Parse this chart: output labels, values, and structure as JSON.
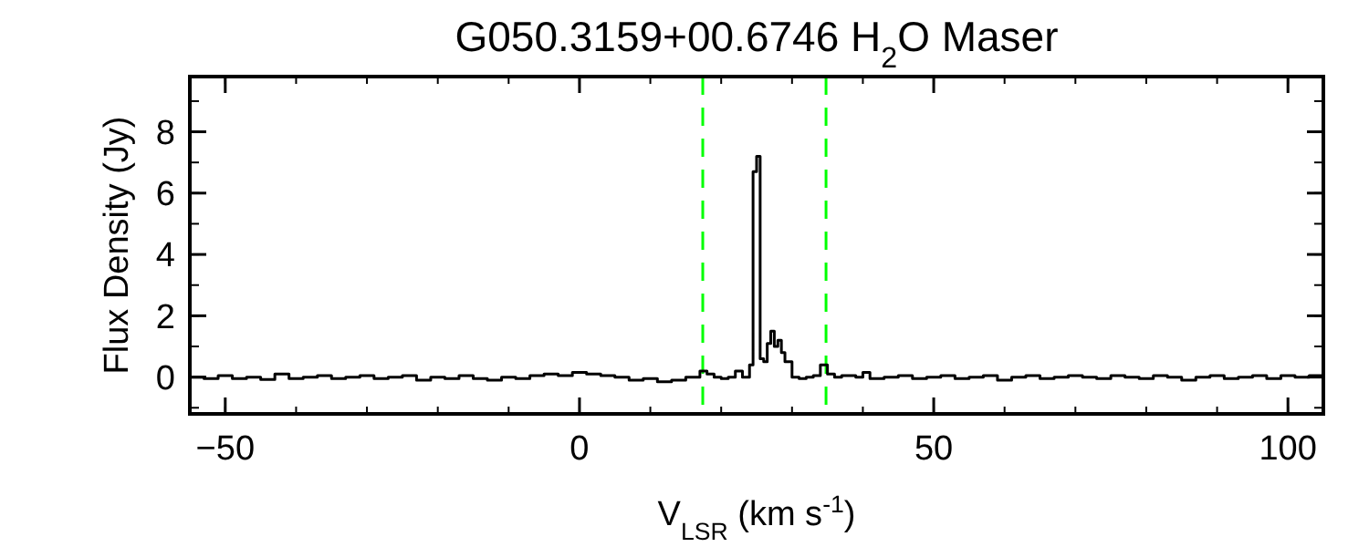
{
  "chart_data": {
    "type": "step",
    "title": "G050.3159+00.6746 H$_{2}$O Maser",
    "xlabel": "V$_{LSR}$ (km s$^{-1}$)",
    "ylabel": "Flux Density (Jy)",
    "xlim": [
      -55,
      105
    ],
    "xticks": [
      -50,
      0,
      50,
      100
    ],
    "ylim": [
      -1.2,
      9.8
    ],
    "yticks": [
      0,
      2,
      4,
      6,
      8
    ],
    "grid": false,
    "series": [
      {
        "color": "#000000",
        "x": [
          -55,
          -53,
          -51,
          -49,
          -47,
          -45,
          -43,
          -41,
          -39,
          -37,
          -35,
          -33,
          -31,
          -29,
          -27,
          -25,
          -23,
          -21,
          -19,
          -17,
          -15,
          -13,
          -11,
          -9,
          -7,
          -5,
          -3,
          -1,
          1,
          3,
          5,
          7,
          9,
          11,
          13,
          15,
          17,
          18,
          19,
          20,
          21,
          22,
          23,
          24,
          24.5,
          25,
          25.5,
          26,
          26.5,
          27,
          27.5,
          28,
          28.5,
          29,
          30,
          31,
          32,
          33,
          34,
          35,
          36,
          37,
          39,
          40,
          41,
          43,
          45,
          47,
          49,
          51,
          53,
          55,
          57,
          59,
          61,
          63,
          65,
          67,
          69,
          71,
          73,
          75,
          77,
          79,
          81,
          83,
          85,
          87,
          89,
          91,
          93,
          95,
          97,
          99,
          101,
          103,
          105
        ],
        "values": [
          0.0,
          -0.05,
          0.05,
          -0.05,
          0.0,
          -0.08,
          0.1,
          -0.05,
          0.0,
          0.05,
          -0.05,
          0.0,
          0.05,
          -0.05,
          0.0,
          0.05,
          -0.1,
          0.0,
          -0.05,
          0.05,
          -0.05,
          -0.1,
          0.0,
          -0.05,
          0.05,
          0.1,
          0.05,
          0.15,
          0.1,
          0.05,
          0.0,
          -0.1,
          -0.05,
          -0.15,
          -0.1,
          0.0,
          0.2,
          0.1,
          0.0,
          -0.05,
          0.0,
          0.2,
          0.0,
          0.4,
          6.7,
          7.2,
          0.6,
          0.5,
          1.1,
          1.5,
          1.0,
          1.2,
          0.8,
          0.5,
          0.0,
          -0.05,
          0.0,
          0.05,
          0.4,
          0.1,
          0.0,
          0.05,
          0.0,
          0.15,
          -0.05,
          0.0,
          0.05,
          -0.05,
          0.0,
          0.05,
          -0.05,
          0.0,
          0.05,
          -0.1,
          0.0,
          0.05,
          -0.05,
          0.0,
          0.05,
          0.0,
          -0.05,
          0.05,
          0.0,
          -0.05,
          0.05,
          0.0,
          -0.1,
          0.0,
          0.05,
          -0.05,
          0.0,
          0.05,
          -0.05,
          0.05,
          0.0,
          0.05,
          -0.05
        ]
      }
    ],
    "ref_lines": [
      {
        "axis": "x",
        "value": 17.4,
        "color": "#00ff00",
        "line_style": "dashed"
      },
      {
        "axis": "x",
        "value": 34.8,
        "color": "#00ff00",
        "line_style": "dashed"
      }
    ]
  }
}
